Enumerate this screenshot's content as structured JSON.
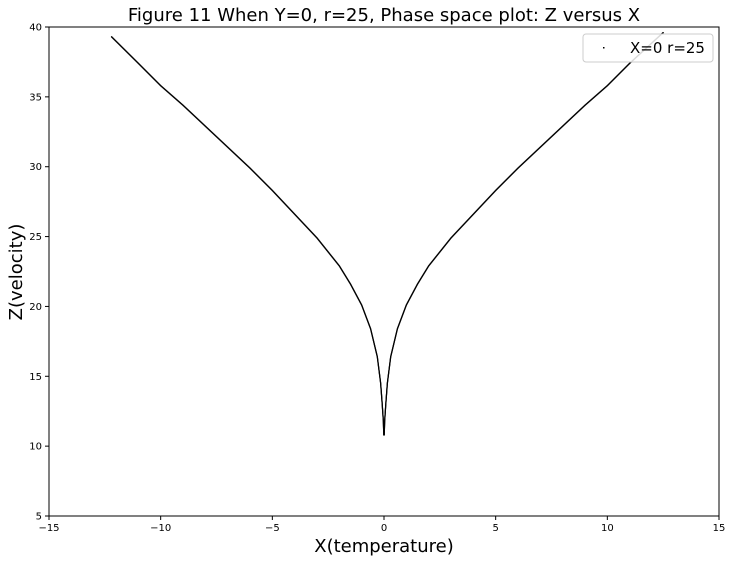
{
  "chart_data": {
    "type": "scatter",
    "title": "Figure 11 When Y=0, r=25, Phase space plot: Z versus X",
    "xlabel": "X(temperature)",
    "ylabel": "Z(velocity)",
    "xlim": [
      -15,
      15
    ],
    "ylim": [
      5,
      40
    ],
    "xticks": [
      -15,
      -10,
      -5,
      0,
      5,
      10,
      15
    ],
    "yticks": [
      5,
      10,
      15,
      20,
      25,
      30,
      35,
      40
    ],
    "xtick_labels": [
      "−15",
      "−10",
      "−5",
      "0",
      "5",
      "10",
      "15"
    ],
    "ytick_labels": [
      "5",
      "10",
      "15",
      "20",
      "25",
      "30",
      "35",
      "40"
    ],
    "grid": false,
    "legend_placement": "top-right",
    "series": [
      {
        "name": "X=0 r=25",
        "color": "#000000",
        "marker": "pixel",
        "left_branch": [
          [
            -12.2,
            39.3
          ],
          [
            -11.0,
            37.4
          ],
          [
            -10.0,
            35.8
          ],
          [
            -9.0,
            34.4
          ],
          [
            -8.0,
            32.9
          ],
          [
            -7.0,
            31.4
          ],
          [
            -6.0,
            29.9
          ],
          [
            -5.0,
            28.3
          ],
          [
            -4.0,
            26.6
          ],
          [
            -3.0,
            24.9
          ],
          [
            -2.0,
            22.9
          ],
          [
            -1.5,
            21.6
          ],
          [
            -1.0,
            20.1
          ],
          [
            -0.6,
            18.4
          ],
          [
            -0.3,
            16.4
          ],
          [
            -0.15,
            14.5
          ],
          [
            -0.08,
            13.0
          ],
          [
            -0.03,
            11.8
          ],
          [
            -0.01,
            10.8
          ]
        ],
        "right_branch": [
          [
            0.01,
            10.8
          ],
          [
            0.03,
            11.8
          ],
          [
            0.08,
            13.0
          ],
          [
            0.15,
            14.5
          ],
          [
            0.3,
            16.4
          ],
          [
            0.6,
            18.4
          ],
          [
            1.0,
            20.1
          ],
          [
            1.5,
            21.6
          ],
          [
            2.0,
            22.9
          ],
          [
            3.0,
            24.9
          ],
          [
            4.0,
            26.6
          ],
          [
            5.0,
            28.3
          ],
          [
            6.0,
            29.9
          ],
          [
            7.0,
            31.4
          ],
          [
            8.0,
            32.9
          ],
          [
            9.0,
            34.4
          ],
          [
            10.0,
            35.8
          ],
          [
            11.0,
            37.4
          ],
          [
            12.5,
            39.6
          ]
        ]
      }
    ]
  }
}
